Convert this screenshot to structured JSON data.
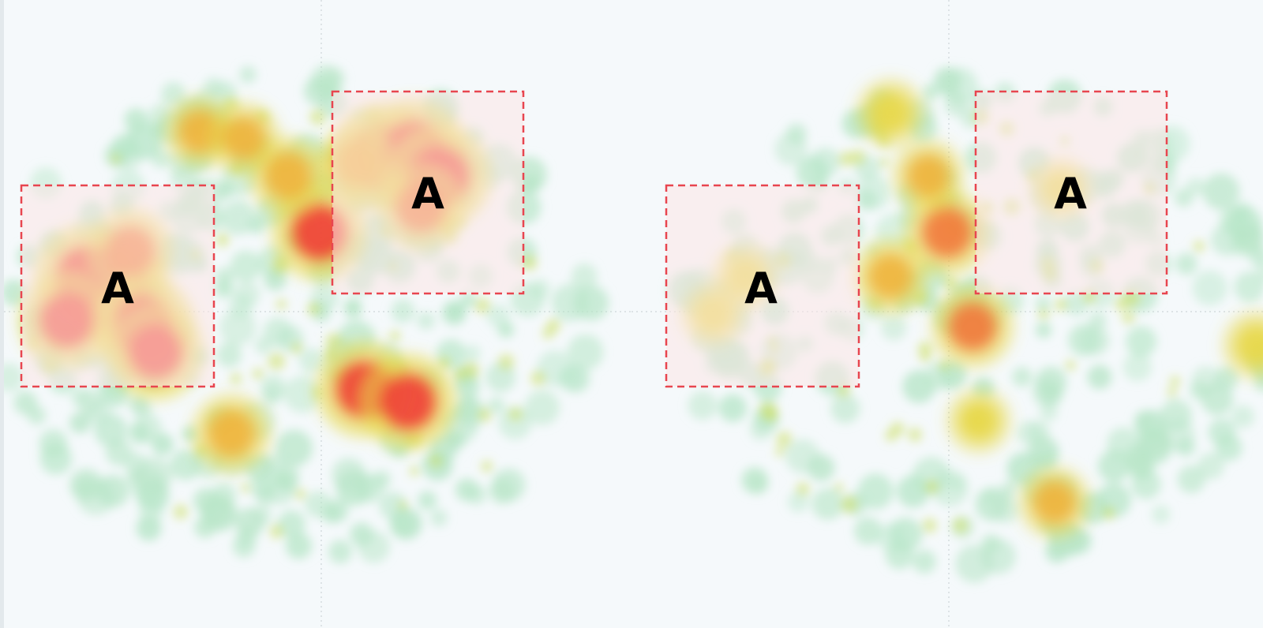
{
  "chart_data": {
    "type": "heatmap",
    "title": "",
    "panels": [
      {
        "name": "",
        "density": "high",
        "hotspots": [
          {
            "x": 0.18,
            "y": 0.47,
            "intensity": 1.0
          },
          {
            "x": 0.13,
            "y": 0.44,
            "intensity": 0.95
          },
          {
            "x": 0.22,
            "y": 0.52,
            "intensity": 0.95
          },
          {
            "x": 0.24,
            "y": 0.56,
            "intensity": 0.85
          },
          {
            "x": 0.1,
            "y": 0.51,
            "intensity": 0.85
          },
          {
            "x": 0.2,
            "y": 0.4,
            "intensity": 0.7
          },
          {
            "x": 0.6,
            "y": 0.25,
            "intensity": 1.0
          },
          {
            "x": 0.65,
            "y": 0.24,
            "intensity": 0.95
          },
          {
            "x": 0.69,
            "y": 0.28,
            "intensity": 0.95
          },
          {
            "x": 0.66,
            "y": 0.33,
            "intensity": 0.7
          },
          {
            "x": 0.56,
            "y": 0.26,
            "intensity": 0.6
          },
          {
            "x": 0.5,
            "y": 0.37,
            "intensity": 0.85
          },
          {
            "x": 0.57,
            "y": 0.62,
            "intensity": 0.85
          },
          {
            "x": 0.64,
            "y": 0.64,
            "intensity": 0.85
          },
          {
            "x": 0.45,
            "y": 0.28,
            "intensity": 0.6
          },
          {
            "x": 0.36,
            "y": 0.69,
            "intensity": 0.6
          },
          {
            "x": 0.31,
            "y": 0.21,
            "intensity": 0.5
          },
          {
            "x": 0.38,
            "y": 0.22,
            "intensity": 0.5
          }
        ]
      },
      {
        "name": "",
        "density": "low",
        "hotspots": [
          {
            "x": 0.5,
            "y": 0.37,
            "intensity": 0.7
          },
          {
            "x": 0.54,
            "y": 0.52,
            "intensity": 0.65
          },
          {
            "x": 0.41,
            "y": 0.44,
            "intensity": 0.55
          },
          {
            "x": 0.47,
            "y": 0.28,
            "intensity": 0.5
          },
          {
            "x": 0.41,
            "y": 0.18,
            "intensity": 0.45
          },
          {
            "x": 0.67,
            "y": 0.8,
            "intensity": 0.5
          },
          {
            "x": 0.18,
            "y": 0.44,
            "intensity": 0.4
          },
          {
            "x": 0.13,
            "y": 0.5,
            "intensity": 0.4
          },
          {
            "x": 0.68,
            "y": 0.3,
            "intensity": 0.35
          },
          {
            "x": 0.99,
            "y": 0.55,
            "intensity": 0.45
          },
          {
            "x": 0.55,
            "y": 0.67,
            "intensity": 0.4
          }
        ]
      }
    ],
    "regions": [
      {
        "panel": 0,
        "label": "A"
      },
      {
        "panel": 0,
        "label": "A"
      },
      {
        "panel": 1,
        "label": "A"
      },
      {
        "panel": 1,
        "label": "A"
      }
    ],
    "grid": true,
    "legend": "none",
    "colors": {
      "background": "#f5f9fb",
      "low": "#b8e6c8",
      "mid": "#e8d84a",
      "high": "#ef3e36",
      "region_fill": "#fbe6e6",
      "region_border": "#e8454f"
    }
  }
}
